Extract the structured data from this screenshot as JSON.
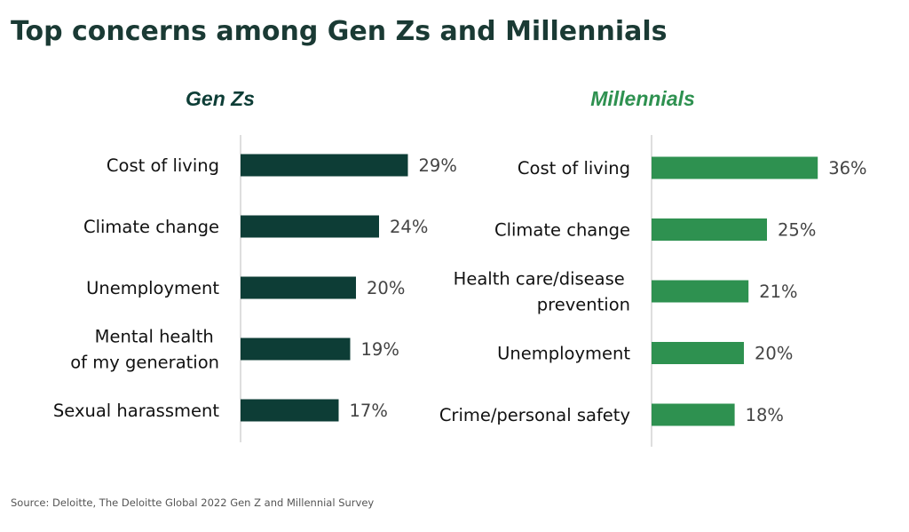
{
  "title": "Top concerns among Gen Zs and Millennials",
  "source": "Source: Deloitte, The Deloitte Global 2022 Gen Z and Millennial Survey",
  "chart_data": [
    {
      "type": "bar",
      "orientation": "horizontal",
      "title": "Gen Zs",
      "color": "#0d3d36",
      "title_color": "#0d3d36",
      "categories": [
        "Cost of living",
        "Climate change",
        "Unemployment",
        "Mental health of my generation",
        "Sexual harassment"
      ],
      "values": [
        29,
        24,
        20,
        19,
        17
      ],
      "value_labels": [
        "29%",
        "24%",
        "20%",
        "19%",
        "17%"
      ],
      "unit": "%",
      "xlim": [
        0,
        45
      ],
      "grid": false,
      "legend": "none"
    },
    {
      "type": "bar",
      "orientation": "horizontal",
      "title": "Millennials",
      "color": "#2e9150",
      "title_color": "#2e9150",
      "categories": [
        "Cost of living",
        "Climate change",
        "Health care/disease prevention",
        "Unemployment",
        "Crime/personal safety"
      ],
      "values": [
        36,
        25,
        21,
        20,
        18
      ],
      "value_labels": [
        "36%",
        "25%",
        "21%",
        "20%",
        "18%"
      ],
      "unit": "%",
      "xlim": [
        0,
        45
      ],
      "grid": false,
      "legend": "none"
    }
  ]
}
